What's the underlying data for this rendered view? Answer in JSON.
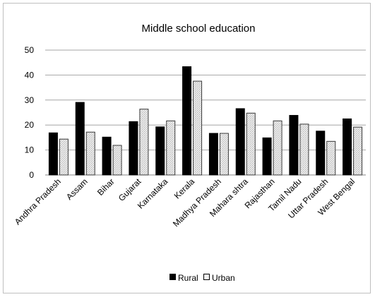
{
  "chart_data": {
    "type": "bar",
    "title": "Middle school education",
    "xlabel": "",
    "ylabel": "",
    "categories": [
      "Andhra Pradesh",
      "Assam",
      "Bihar",
      "Gujarat",
      "Karnataka",
      "Kerala",
      "Madhya Pradesh",
      "Mahara shtra",
      "Rajasthan",
      "Tamil Nadu",
      "Uttar Pradesh",
      "West Bengal"
    ],
    "series": [
      {
        "name": "Rural",
        "color": "#000000",
        "values": [
          17,
          29.2,
          15.3,
          21.5,
          19.4,
          43.5,
          16.8,
          26.7,
          15,
          24,
          17.7,
          22.6
        ]
      },
      {
        "name": "Urban",
        "color": "#e6e6e6",
        "values": [
          14.5,
          17.3,
          12,
          26.5,
          21.8,
          37.7,
          16.8,
          24.9,
          21.8,
          20.5,
          13.6,
          19.3
        ]
      }
    ],
    "ylim": [
      0,
      50
    ],
    "yticks": [
      0,
      10,
      20,
      30,
      40,
      50
    ],
    "grid": true,
    "legend": "bottom"
  }
}
